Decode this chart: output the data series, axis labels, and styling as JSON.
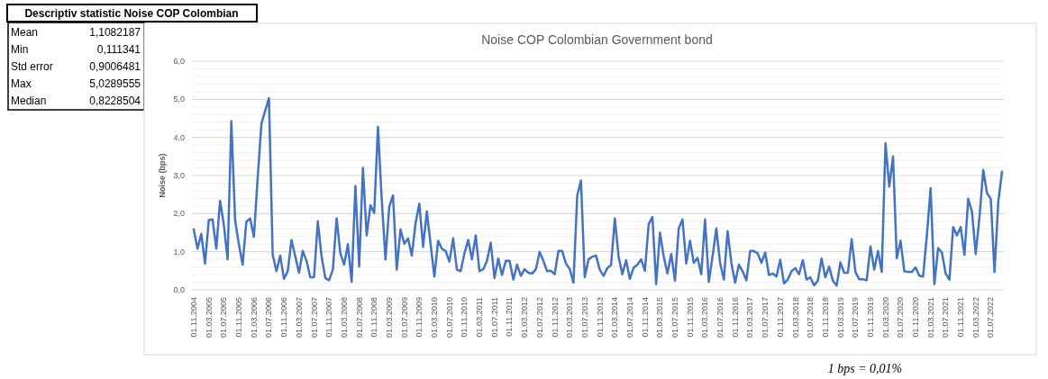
{
  "chart_data": [
    {
      "type": "other",
      "title": "Descriptiv statistic Noise COP Colombian",
      "annotations": [
        "Mean",
        "1,1082187",
        "Min",
        "0,111341",
        "Std error",
        "0,9006481",
        "Max",
        "5,0289555",
        "Median",
        "0,8228504"
      ]
    },
    {
      "type": "line",
      "title": "Noise COP Colombian Government bond",
      "ylabel": "Noise (bps)",
      "annotations": [
        "1 bps = 0,01%"
      ],
      "categories": [
        "01.11.2004",
        null,
        null,
        null,
        "01.03.2005",
        null,
        null,
        null,
        "01.07.2005",
        null,
        null,
        null,
        "01.11.2005",
        null,
        null,
        null,
        "01.03.2006",
        null,
        null,
        null,
        "01.07.2006",
        null,
        null,
        null,
        "01.11.2006",
        null,
        null,
        null,
        "01.03.2007",
        null,
        null,
        null,
        "01.07.2007",
        null,
        null,
        null,
        "01.11.2007",
        null,
        null,
        null,
        "01.03.2008",
        null,
        null,
        null,
        "01.07.2008",
        null,
        null,
        null,
        "01.11.2008",
        null,
        null,
        null,
        "01.03.2009",
        null,
        null,
        null,
        "01.07.2009",
        null,
        null,
        null,
        "01.11.2009",
        null,
        null,
        null,
        "01.03.2010",
        null,
        null,
        null,
        "01.07.2010",
        null,
        null,
        null,
        "01.11.2010",
        null,
        null,
        null,
        "01.03.2011",
        null,
        null,
        null,
        "01.07.2011",
        null,
        null,
        null,
        "01.11.2011",
        null,
        null,
        null,
        "01.03.2012",
        null,
        null,
        null,
        "01.07.2012",
        null,
        null,
        null,
        "01.11.2012",
        null,
        null,
        null,
        "01.03.2013",
        null,
        null,
        null,
        "01.07.2013",
        null,
        null,
        null,
        "01.11.2013",
        null,
        null,
        null,
        "01.03.2014",
        null,
        null,
        null,
        "01.07.2014",
        null,
        null,
        null,
        "01.11.2014",
        null,
        null,
        null,
        "01.03.2015",
        null,
        null,
        null,
        "01.07.2015",
        null,
        null,
        null,
        "01.11.2015",
        null,
        null,
        null,
        "01.03.2016",
        null,
        null,
        null,
        "01.07.2016",
        null,
        null,
        null,
        "01.11.2016",
        null,
        null,
        null,
        "01.03.2017",
        null,
        null,
        null,
        "01.07.2017",
        null,
        null,
        null,
        "01.11.2017",
        null,
        null,
        null,
        "01.03.2018",
        null,
        null,
        null,
        "01.07.2018",
        null,
        null,
        null,
        "01.11.2018",
        null,
        null,
        null,
        "01.03.2019",
        null,
        null,
        null,
        "01.07.2019",
        null,
        null,
        null,
        "01.11.2019",
        null,
        null,
        null,
        "01.03.2020",
        null,
        null,
        null,
        "01.07.2020",
        null,
        null,
        null,
        "01.11.2020",
        null,
        null,
        null,
        "01.03.2021",
        null,
        null,
        null,
        "01.07.2021",
        null,
        null,
        null,
        "01.11.2021",
        null,
        null,
        null,
        "01.03.2022",
        null,
        null,
        null,
        "01.07.2022",
        null,
        null,
        null
      ],
      "series": [
        {
          "color": "#4472c4",
          "values": [
            1.59,
            1.08,
            1.47,
            0.69,
            1.83,
            1.85,
            1.08,
            2.34,
            1.71,
            0.8,
            4.43,
            1.83,
            1.2,
            0.66,
            1.79,
            1.87,
            1.39,
            2.93,
            4.36,
            4.7,
            5.03,
            0.92,
            0.49,
            0.9,
            0.29,
            0.49,
            1.31,
            0.88,
            0.45,
            1.02,
            0.76,
            0.33,
            0.33,
            1.8,
            0.88,
            0.31,
            0.25,
            0.53,
            1.88,
            0.96,
            0.66,
            1.2,
            0.21,
            2.73,
            0.61,
            3.2,
            1.43,
            2.22,
            2.02,
            4.28,
            2.38,
            0.8,
            2.18,
            2.48,
            0.53,
            1.59,
            1.21,
            1.35,
            0.9,
            1.75,
            2.26,
            1.13,
            2.06,
            1.2,
            0.35,
            1.29,
            1.08,
            1.02,
            0.74,
            1.35,
            0.53,
            0.49,
            0.96,
            1.31,
            0.8,
            1.43,
            0.49,
            0.54,
            0.76,
            1.24,
            0.31,
            0.82,
            0.39,
            0.76,
            0.76,
            0.27,
            0.66,
            0.37,
            0.54,
            0.45,
            0.43,
            0.54,
            1.0,
            0.76,
            0.49,
            0.5,
            0.41,
            1.02,
            1.02,
            0.69,
            0.55,
            0.19,
            2.47,
            2.87,
            0.33,
            0.8,
            0.87,
            0.9,
            0.53,
            0.37,
            0.57,
            0.65,
            1.87,
            0.88,
            0.41,
            0.78,
            0.29,
            0.58,
            0.66,
            0.8,
            0.5,
            1.72,
            1.91,
            0.15,
            1.5,
            0.88,
            0.43,
            0.94,
            0.24,
            1.61,
            1.85,
            0.69,
            1.29,
            0.71,
            0.84,
            0.41,
            1.85,
            0.21,
            0.88,
            1.61,
            0.71,
            0.27,
            1.54,
            0.71,
            0.19,
            0.66,
            0.49,
            0.25,
            1.02,
            1.02,
            0.96,
            0.71,
            0.98,
            0.39,
            0.43,
            0.35,
            0.79,
            0.17,
            0.27,
            0.49,
            0.57,
            0.41,
            0.78,
            0.27,
            0.33,
            0.12,
            0.24,
            0.82,
            0.33,
            0.61,
            0.24,
            0.11,
            0.72,
            0.45,
            0.45,
            1.33,
            0.47,
            0.28,
            0.28,
            0.25,
            1.14,
            0.53,
            1.02,
            0.47,
            3.85,
            2.71,
            3.5,
            0.83,
            1.29,
            0.49,
            0.47,
            0.47,
            0.59,
            0.37,
            0.35,
            1.43,
            2.67,
            0.15,
            1.1,
            0.98,
            0.43,
            0.27,
            1.65,
            1.43,
            1.65,
            0.92,
            2.39,
            2.06,
            0.94,
            1.91,
            3.15,
            2.54,
            2.39,
            0.47,
            2.32,
            3.1
          ]
        }
      ],
      "ylim": [
        0,
        6
      ],
      "yticks": [
        {
          "value": 0,
          "label": "0,0"
        },
        {
          "value": 0.2,
          "label": null
        },
        {
          "value": 0.4,
          "label": null
        },
        {
          "value": 0.6,
          "label": null
        },
        {
          "value": 0.8,
          "label": null
        },
        {
          "value": 1,
          "label": "1,0"
        },
        {
          "value": 1.2,
          "label": null
        },
        {
          "value": 1.4,
          "label": null
        },
        {
          "value": 1.6,
          "label": null
        },
        {
          "value": 1.8,
          "label": null
        },
        {
          "value": 2,
          "label": "2,0"
        },
        {
          "value": 2.2,
          "label": null
        },
        {
          "value": 2.4,
          "label": null
        },
        {
          "value": 2.6,
          "label": null
        },
        {
          "value": 2.8,
          "label": null
        },
        {
          "value": 3,
          "label": "3,0"
        },
        {
          "value": 3.2,
          "label": null
        },
        {
          "value": 3.4,
          "label": null
        },
        {
          "value": 3.6,
          "label": null
        },
        {
          "value": 3.8,
          "label": null
        },
        {
          "value": 4,
          "label": "4,0"
        },
        {
          "value": 4.2,
          "label": null
        },
        {
          "value": 4.4,
          "label": null
        },
        {
          "value": 4.6,
          "label": null
        },
        {
          "value": 4.8,
          "label": null
        },
        {
          "value": 5,
          "label": "5,0"
        },
        {
          "value": 5.2,
          "label": null
        },
        {
          "value": 5.4,
          "label": null
        },
        {
          "value": 5.6,
          "label": null
        },
        {
          "value": 5.8,
          "label": null
        },
        {
          "value": 6,
          "label": "6,0"
        }
      ],
      "grid": "y",
      "marker": "none",
      "line_style": "solid"
    }
  ]
}
